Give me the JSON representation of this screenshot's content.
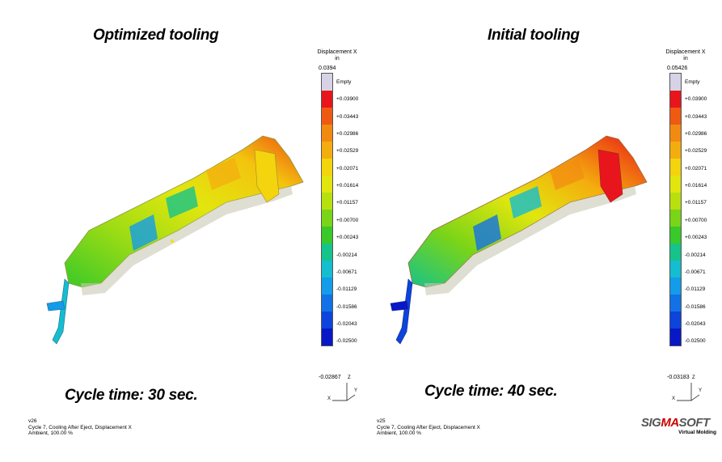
{
  "left_panel": {
    "title": "Optimized tooling",
    "cycle_time": "Cycle time: 30 sec.",
    "legend": {
      "header_line1": "Displacement X",
      "header_line2": "in",
      "max_value": "0.0394",
      "min_value": "-0.02867",
      "labels": [
        "Empty",
        "+0.03900",
        "+0.03443",
        "+0.02986",
        "+0.02529",
        "+0.02071",
        "+0.01614",
        "+0.01157",
        "+0.00700",
        "+0.00243",
        "-0.00214",
        "-0.00671",
        "-0.01129",
        "-0.01586",
        "-0.02043",
        "-0.02500"
      ]
    },
    "footer": [
      "v26",
      "Cycle 7, Cooling After Eject, Displacement X",
      "Ambient, 100.00 %"
    ]
  },
  "right_panel": {
    "title": "Initial tooling",
    "cycle_time": "Cycle time: 40 sec.",
    "legend": {
      "header_line1": "Displacement X",
      "header_line2": "in",
      "max_value": "0.05426",
      "min_value": "-0.03183",
      "labels": [
        "Empty",
        "+0.03900",
        "+0.03443",
        "+0.02986",
        "+0.02529",
        "+0.02071",
        "+0.01614",
        "+0.01157",
        "+0.00700",
        "+0.00243",
        "-0.00214",
        "-0.00671",
        "-0.01129",
        "-0.01586",
        "-0.02043",
        "-0.02500"
      ]
    },
    "footer": [
      "v25",
      "Cycle 7, Cooling After Eject, Displacement X",
      "Ambient, 100.00 %"
    ]
  },
  "axis_labels": {
    "z": "Z",
    "x": "X",
    "y": "Y"
  },
  "logo": {
    "prefix": "SIG",
    "accent": "MA",
    "suffix": "SOFT",
    "tagline": "Virtual Molding"
  },
  "colors": {
    "scale": [
      "#d7d2e6",
      "#e8151c",
      "#ef5a12",
      "#f28a11",
      "#f4ad0e",
      "#f3d40d",
      "#e2e60e",
      "#b8e00e",
      "#7ad418",
      "#39c928",
      "#16c38a",
      "#14bdd0",
      "#129ce9",
      "#1172e6",
      "#0c44dc",
      "#0818c7"
    ]
  }
}
